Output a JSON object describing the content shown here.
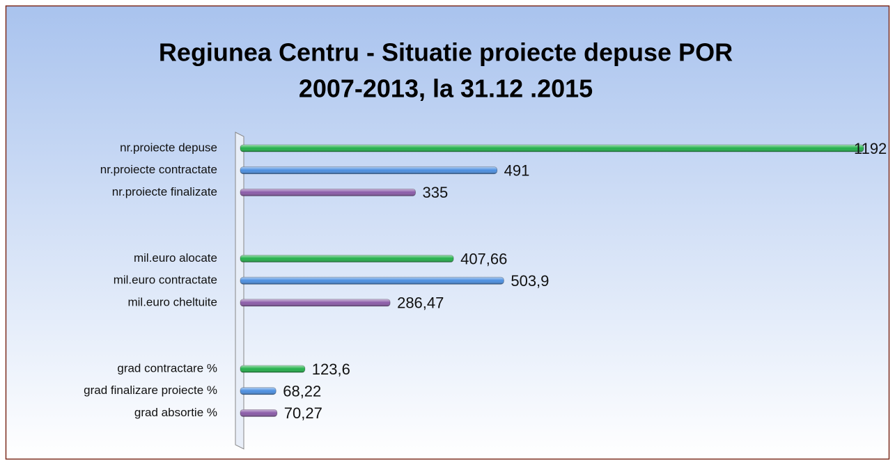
{
  "chart_data": {
    "type": "hbar",
    "title": [
      "Regiunea Centru - Situatie proiecte depuse POR",
      "2007-2013, la 31.12 .2015"
    ],
    "categories": [
      "nr.proiecte depuse",
      "nr.proiecte contractate",
      "nr.proiecte finalizate",
      null,
      null,
      "mil.euro alocate",
      "mil.euro contractate",
      "mil.euro cheltuite",
      null,
      null,
      "grad contractare %",
      "grad finalizare proiecte %",
      "grad absortie %"
    ],
    "values": [
      1192,
      491,
      335,
      null,
      null,
      407.66,
      503.9,
      286.47,
      null,
      null,
      123.6,
      68.22,
      70.27
    ],
    "value_labels": [
      "1192",
      "491",
      "335",
      null,
      null,
      "407,66",
      "503,9",
      "286,47",
      null,
      null,
      "123,6",
      "68,22",
      "70,27"
    ],
    "colors": [
      "#22b04a",
      "#4a8ee0",
      "#8a5aa8",
      null,
      null,
      "#22b04a",
      "#4a8ee0",
      "#8a5aa8",
      null,
      null,
      "#22b04a",
      "#4a8ee0",
      "#8a5aa8"
    ],
    "xlim": [
      0,
      1200
    ]
  }
}
